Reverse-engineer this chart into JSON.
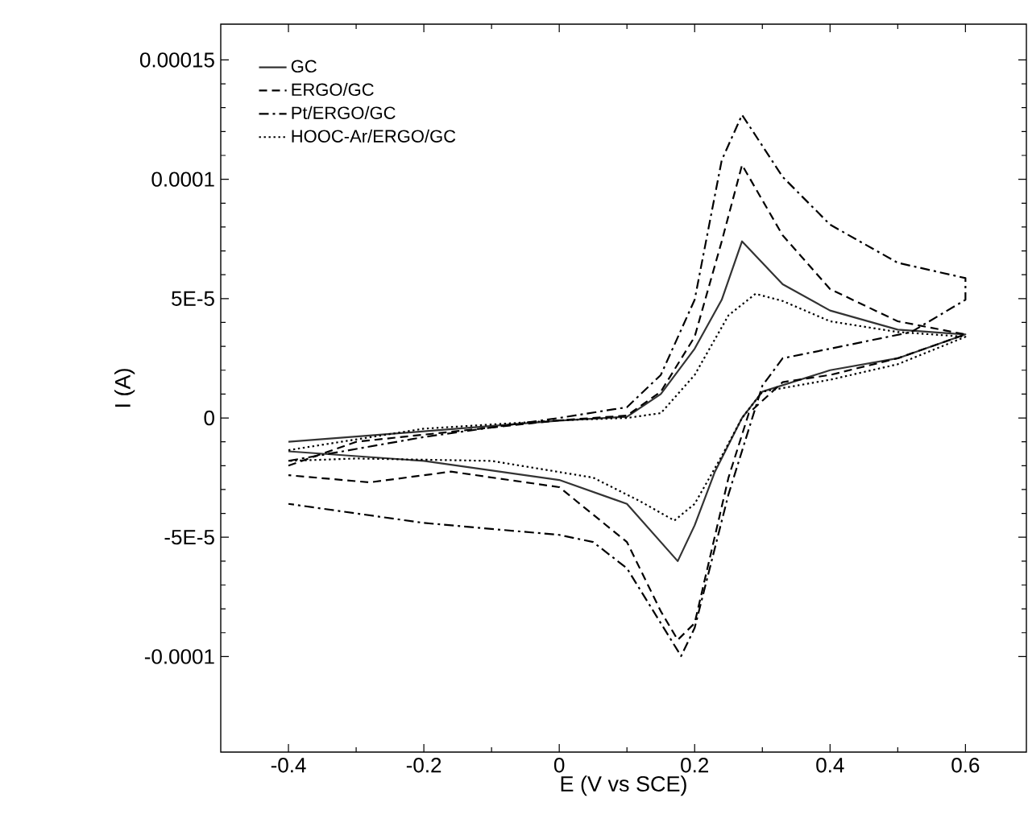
{
  "chart_data": {
    "type": "line",
    "xlabel": "E (V vs SCE)",
    "ylabel": "I (A)",
    "xlim": [
      -0.5,
      0.69
    ],
    "ylim": [
      -0.00014,
      0.000165
    ],
    "xticks": [
      -0.4,
      -0.2,
      0,
      0.2,
      0.4,
      0.6
    ],
    "yticks": [
      {
        "value": -0.0001,
        "label": "-0.0001"
      },
      {
        "value": -5e-05,
        "label": "-5E-5"
      },
      {
        "value": 0,
        "label": "0"
      },
      {
        "value": 5e-05,
        "label": "5E-5"
      },
      {
        "value": 0.0001,
        "label": "0.0001"
      },
      {
        "value": 0.00015,
        "label": "0.00015"
      }
    ],
    "legend": "top left",
    "marker": "none",
    "series": [
      {
        "name": "GC",
        "color": "#333333",
        "line_style": "solid",
        "x": [
          -0.4,
          -0.2,
          0,
          0.1,
          0.15,
          0.2,
          0.24,
          0.27,
          0.33,
          0.4,
          0.5,
          0.6,
          0.5,
          0.4,
          0.3,
          0.27,
          0.23,
          0.2,
          0.175,
          0.1,
          0,
          -0.2,
          -0.4
        ],
        "values": [
          -1e-05,
          -5.6e-06,
          -1.1e-06,
          5e-07,
          1e-05,
          2.9e-05,
          4.95e-05,
          7.4e-05,
          5.6e-05,
          4.5e-05,
          3.7e-05,
          3.5e-05,
          2.5e-05,
          2e-05,
          1.1e-05,
          0,
          -2.25e-05,
          -4.5e-05,
          -6e-05,
          -3.6e-05,
          -2.6e-05,
          -1.8e-05,
          -1.4e-05
        ]
      },
      {
        "name": "ERGO/GC",
        "color": "#000000",
        "line_style": "dashed",
        "x": [
          -0.4,
          -0.3,
          -0.2,
          0,
          0.1,
          0.15,
          0.2,
          0.24,
          0.27,
          0.33,
          0.4,
          0.5,
          0.6,
          0.5,
          0.4,
          0.33,
          0.28,
          0.25,
          0.2,
          0.175,
          0.15,
          0.1,
          0,
          -0.16,
          -0.28,
          -0.4
        ],
        "values": [
          -2e-05,
          -1e-05,
          -7e-06,
          -1e-06,
          1e-06,
          1.1e-05,
          3.4e-05,
          7.4e-05,
          0.000106,
          7.65e-05,
          5.4e-05,
          4.05e-05,
          3.5e-05,
          2.5e-05,
          1.8e-05,
          1.5e-05,
          2e-06,
          -2.5e-05,
          -8.6e-05,
          -9.3e-05,
          -8.1e-05,
          -5.2e-05,
          -2.9e-05,
          -2.25e-05,
          -2.7e-05,
          -2.4e-05
        ]
      },
      {
        "name": "Pt/ERGO/GC",
        "color": "#000000",
        "line_style": "dashdot",
        "x": [
          -0.4,
          -0.2,
          0,
          0.1,
          0.15,
          0.2,
          0.24,
          0.27,
          0.33,
          0.4,
          0.5,
          0.6,
          0.6,
          0.52,
          0.4,
          0.33,
          0.3,
          0.25,
          0.2,
          0.18,
          0.15,
          0.1,
          0.05,
          0,
          -0.2,
          -0.4
        ],
        "values": [
          -1.8e-05,
          -8e-06,
          0,
          4.5e-06,
          1.8e-05,
          4.95e-05,
          0.000108,
          0.000127,
          0.000101,
          8.1e-05,
          6.5e-05,
          5.86e-05,
          4.95e-05,
          3.6e-05,
          2.9e-05,
          2.5e-05,
          1.35e-05,
          -3.2e-05,
          -8.8e-05,
          -9.98e-05,
          -8.6e-05,
          -6.3e-05,
          -5.2e-05,
          -4.9e-05,
          -4.4e-05,
          -3.6e-05
        ]
      },
      {
        "name": "HOOC-Ar/ERGO/GC",
        "color": "#000000",
        "line_style": "dotted",
        "x": [
          -0.4,
          -0.2,
          0,
          0.1,
          0.15,
          0.2,
          0.25,
          0.29,
          0.33,
          0.4,
          0.5,
          0.6,
          0.5,
          0.4,
          0.3,
          0.27,
          0.24,
          0.2,
          0.17,
          0.12,
          0.05,
          -0.1,
          -0.3,
          -0.4
        ],
        "values": [
          -1.35e-05,
          -4.5e-06,
          -1e-06,
          0,
          2e-06,
          1.8e-05,
          4.3e-05,
          5.2e-05,
          4.9e-05,
          4.05e-05,
          3.6e-05,
          3.4e-05,
          2.25e-05,
          1.6e-05,
          1.1e-05,
          0,
          -1.6e-05,
          -3.6e-05,
          -4.3e-05,
          -3.5e-05,
          -2.5e-05,
          -1.8e-05,
          -1.7e-05,
          -1.8e-05
        ]
      }
    ]
  }
}
